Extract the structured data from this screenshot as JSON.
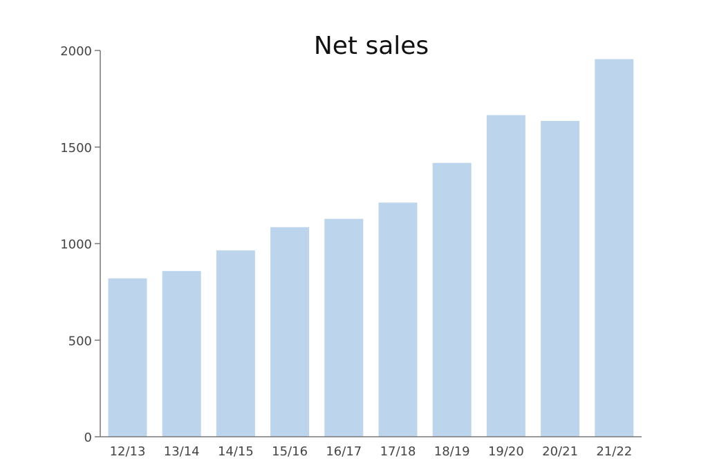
{
  "chart_data": {
    "type": "bar",
    "title": "Net sales",
    "xlabel": "",
    "ylabel": "",
    "categories": [
      "12/13",
      "13/14",
      "14/15",
      "15/16",
      "16/17",
      "17/18",
      "18/19",
      "19/20",
      "20/21",
      "21/22"
    ],
    "values": [
      820,
      858,
      965,
      1085,
      1128,
      1212,
      1418,
      1665,
      1635,
      1955
    ],
    "ylim": [
      0,
      2000
    ],
    "yticks": [
      0,
      500,
      1000,
      1500,
      2000
    ],
    "grid": false,
    "legend": "none",
    "bar_color": "#bdd4ed",
    "axis_color": "#777777"
  }
}
